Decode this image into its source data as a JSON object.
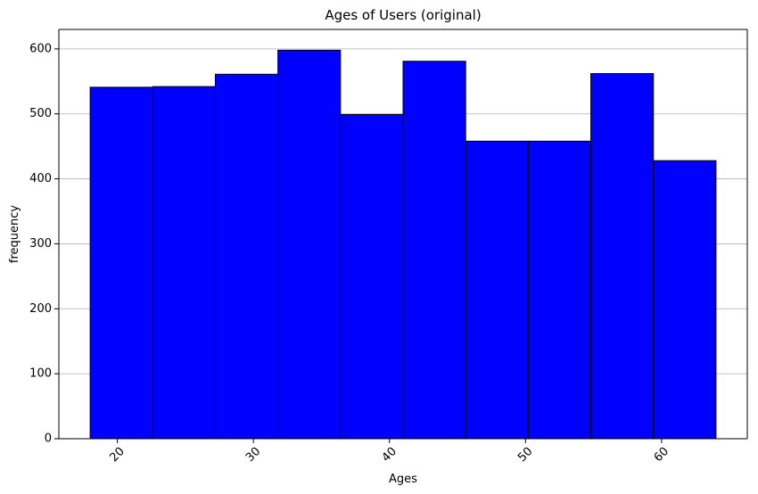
{
  "chart_data": {
    "type": "bar",
    "title": "Ages of Users (original)",
    "xlabel": "Ages",
    "ylabel": "frequency",
    "bins": [
      {
        "start": 18.0,
        "end": 22.6,
        "count": 541
      },
      {
        "start": 22.6,
        "end": 27.2,
        "count": 542
      },
      {
        "start": 27.2,
        "end": 31.8,
        "count": 561
      },
      {
        "start": 31.8,
        "end": 36.4,
        "count": 598
      },
      {
        "start": 36.4,
        "end": 41.0,
        "count": 499
      },
      {
        "start": 41.0,
        "end": 45.6,
        "count": 581
      },
      {
        "start": 45.6,
        "end": 50.2,
        "count": 458
      },
      {
        "start": 50.2,
        "end": 54.8,
        "count": 458
      },
      {
        "start": 54.8,
        "end": 59.4,
        "count": 562
      },
      {
        "start": 59.4,
        "end": 64.0,
        "count": 428
      }
    ],
    "xlim": [
      15.7,
      66.3
    ],
    "ylim": [
      0,
      630
    ],
    "xticks": [
      20,
      30,
      40,
      50,
      60
    ],
    "xtick_labels": [
      "20",
      "30",
      "40",
      "50",
      "60"
    ],
    "xtick_rotation": -45,
    "yticks": [
      0,
      100,
      200,
      300,
      400,
      500,
      600
    ],
    "ytick_labels": [
      "0",
      "100",
      "200",
      "300",
      "400",
      "500",
      "600"
    ],
    "grid": {
      "x": false,
      "y": true
    },
    "bar_color": "#0000ff",
    "edge_color": "#000000"
  }
}
